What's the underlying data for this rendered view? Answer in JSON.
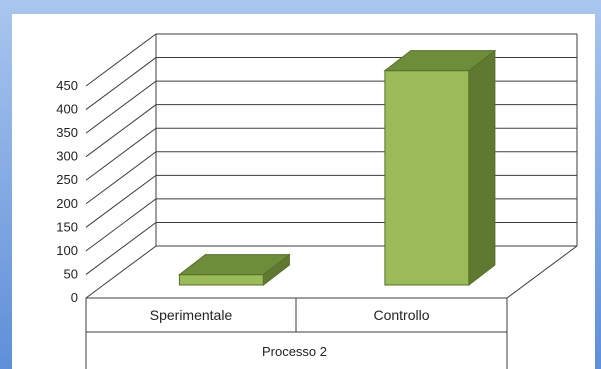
{
  "colors": {
    "background_gradient_top": "#a9c6ee",
    "background_gradient_bottom": "#5f8fd8",
    "plot_background": "#ffffff",
    "grid": "#3c3c3c",
    "bar_front": "#9bbb59",
    "bar_side": "#5f7a30",
    "bar_top": "#6e8d3a",
    "bar_stroke": "#55712a"
  },
  "chart_data": {
    "type": "bar",
    "three_d": true,
    "categories": [
      "Sperimentale",
      "Controllo"
    ],
    "group_label": "Processo 2",
    "series": [
      {
        "values": [
          22,
          455
        ]
      }
    ],
    "ylim": [
      0,
      450
    ],
    "yticks": [
      0,
      50,
      100,
      150,
      200,
      250,
      300,
      350,
      400,
      450
    ],
    "grid": true,
    "legend": "none"
  }
}
